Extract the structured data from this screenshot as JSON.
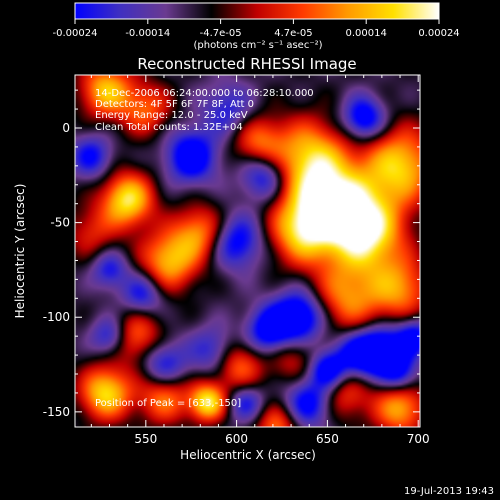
{
  "colorbar": {
    "ticks": [
      "-0.00024",
      "-0.00014",
      "-4.7e-05",
      "4.7e-05",
      "0.00014",
      "0.00024"
    ],
    "unit_label": "(photons cm⁻² s⁻¹ asec⁻²)",
    "colors": [
      "#0000ff",
      "#4030c0",
      "#6a3a90",
      "#000000",
      "#c00000",
      "#ff3a00",
      "#ff9a00",
      "#ffe000",
      "#ffffff"
    ]
  },
  "chart_data": {
    "type": "heatmap",
    "title": "Reconstructed RHESSI Image",
    "xlabel": "Heliocentric X (arcsec)",
    "ylabel": "Heliocentric Y (arcsec)",
    "xlim": [
      511,
      701
    ],
    "ylim": [
      -158,
      28
    ],
    "xticks": [
      "550",
      "600",
      "650",
      "700"
    ],
    "xtick_values": [
      550,
      600,
      650,
      700
    ],
    "yticks": [
      "0",
      "-50",
      "-100",
      "-150"
    ],
    "ytick_values": [
      0,
      -50,
      -100,
      -150
    ],
    "info": [
      "14-Dec-2006 06:24:00.000 to 06:28:10.000",
      "Detectors: 4F 5F 6F 7F 8F, Att 0",
      "Energy Range: 12.0 - 25.0 keV",
      "Clean     Total counts: 1.32E+04"
    ],
    "peak_label": "Position of Peak = [633,-150]",
    "blobs": [
      {
        "x": 652,
        "y": -40,
        "v": 1.0,
        "s": 16
      },
      {
        "x": 672,
        "y": -55,
        "v": 0.9,
        "s": 14
      },
      {
        "x": 640,
        "y": -15,
        "v": 0.7,
        "s": 14
      },
      {
        "x": 690,
        "y": -20,
        "v": 0.8,
        "s": 14
      },
      {
        "x": 660,
        "y": -90,
        "v": 0.6,
        "s": 14
      },
      {
        "x": 635,
        "y": -55,
        "v": 0.65,
        "s": 12
      },
      {
        "x": 690,
        "y": -85,
        "v": 0.6,
        "s": 12
      },
      {
        "x": 612,
        "y": -8,
        "v": 0.55,
        "s": 10
      },
      {
        "x": 540,
        "y": -38,
        "v": 0.9,
        "s": 10
      },
      {
        "x": 528,
        "y": 20,
        "v": 0.75,
        "s": 10
      },
      {
        "x": 550,
        "y": 10,
        "v": 0.5,
        "s": 10
      },
      {
        "x": 563,
        "y": -70,
        "v": 0.75,
        "s": 11
      },
      {
        "x": 580,
        "y": -55,
        "v": 0.6,
        "s": 10
      },
      {
        "x": 545,
        "y": -110,
        "v": 0.55,
        "s": 10
      },
      {
        "x": 528,
        "y": -140,
        "v": 0.85,
        "s": 10
      },
      {
        "x": 560,
        "y": -142,
        "v": 0.6,
        "s": 10
      },
      {
        "x": 584,
        "y": -145,
        "v": 0.9,
        "s": 7
      },
      {
        "x": 600,
        "y": -125,
        "v": 0.6,
        "s": 10
      },
      {
        "x": 630,
        "y": -120,
        "v": 0.4,
        "s": 10
      },
      {
        "x": 690,
        "y": -148,
        "v": 0.7,
        "s": 10
      },
      {
        "x": 660,
        "y": -140,
        "v": 0.45,
        "s": 10
      },
      {
        "x": 622,
        "y": -158,
        "v": 0.55,
        "s": 8
      },
      {
        "x": 575,
        "y": -15,
        "v": -0.7,
        "s": 10
      },
      {
        "x": 615,
        "y": -25,
        "v": -0.6,
        "s": 9
      },
      {
        "x": 600,
        "y": -60,
        "v": -0.6,
        "s": 10
      },
      {
        "x": 635,
        "y": -100,
        "v": -0.85,
        "s": 10
      },
      {
        "x": 618,
        "y": -108,
        "v": -0.7,
        "s": 9
      },
      {
        "x": 665,
        "y": -120,
        "v": -0.6,
        "s": 9
      },
      {
        "x": 680,
        "y": -118,
        "v": -0.9,
        "s": 9
      },
      {
        "x": 698,
        "y": -110,
        "v": -0.6,
        "s": 7
      },
      {
        "x": 670,
        "y": 5,
        "v": -0.7,
        "s": 8
      },
      {
        "x": 520,
        "y": -15,
        "v": -0.5,
        "s": 8
      },
      {
        "x": 548,
        "y": -88,
        "v": -0.5,
        "s": 8
      },
      {
        "x": 530,
        "y": -110,
        "v": -0.5,
        "s": 7
      },
      {
        "x": 530,
        "y": -75,
        "v": -0.45,
        "s": 7
      },
      {
        "x": 560,
        "y": -125,
        "v": -0.55,
        "s": 9
      },
      {
        "x": 588,
        "y": -118,
        "v": -0.5,
        "s": 9
      },
      {
        "x": 640,
        "y": -145,
        "v": -0.6,
        "s": 9
      },
      {
        "x": 650,
        "y": -128,
        "v": -0.65,
        "s": 7
      },
      {
        "x": 605,
        "y": -145,
        "v": -0.45,
        "s": 7
      },
      {
        "x": 690,
        "y": -130,
        "v": -0.5,
        "s": 7
      },
      {
        "x": 595,
        "y": 10,
        "v": -0.4,
        "s": 10
      },
      {
        "x": 520,
        "y": -55,
        "v": 0.35,
        "s": 10
      }
    ],
    "background": -0.35
  },
  "footer": {
    "timestamp": "19-Jul-2013 19:43"
  }
}
